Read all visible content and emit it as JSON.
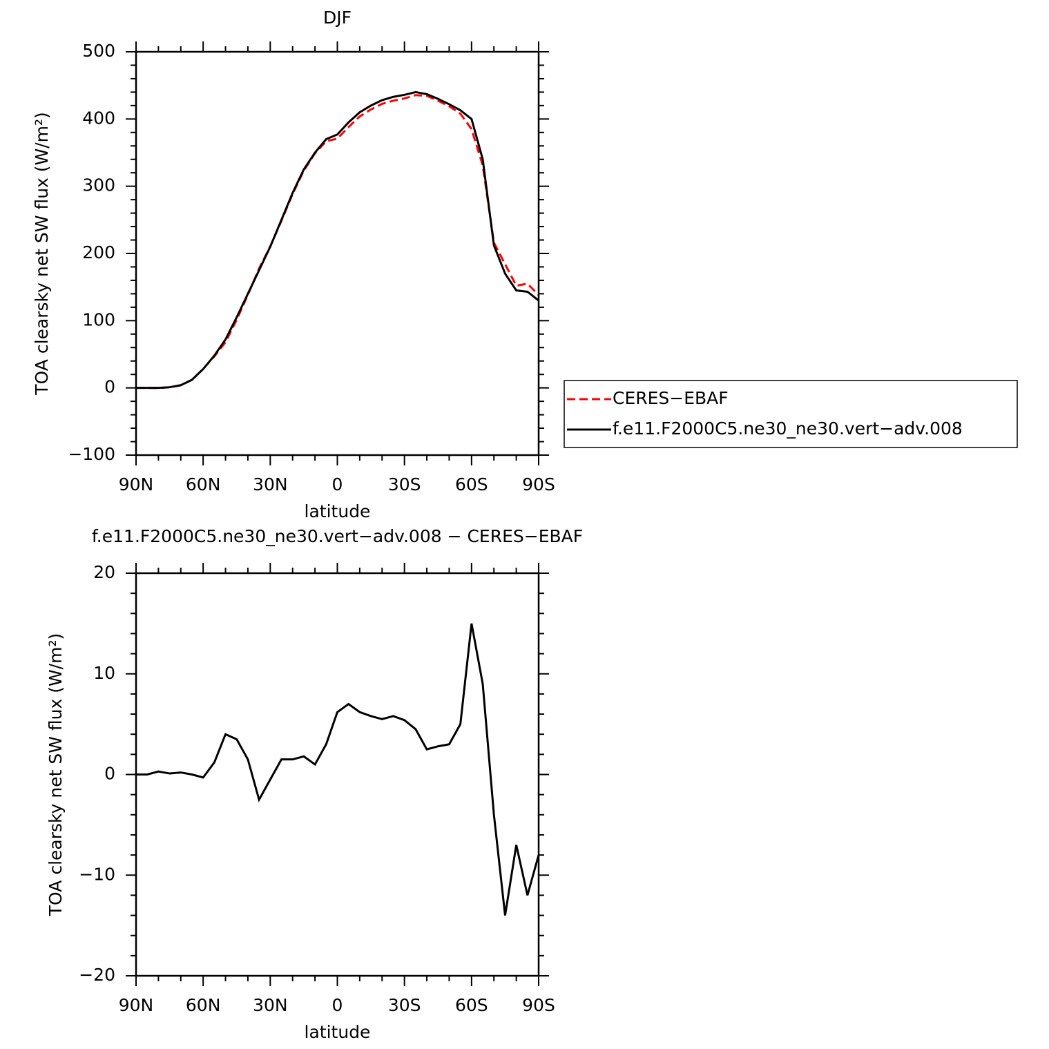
{
  "chart_data": [
    {
      "type": "line",
      "title": "DJF",
      "xlabel": "latitude",
      "ylabel": "TOA clearsky net SW flux (W/m²)",
      "x": [
        90,
        85,
        80,
        75,
        70,
        65,
        60,
        55,
        50,
        45,
        40,
        35,
        30,
        25,
        20,
        15,
        10,
        5,
        0,
        -5,
        -10,
        -15,
        -20,
        -25,
        -30,
        -35,
        -40,
        -45,
        -50,
        -55,
        -60,
        -65,
        -70,
        -75,
        -80,
        -85,
        -90
      ],
      "series": [
        {
          "name": "CERES−EBAF",
          "color": "#ff0000",
          "dash": true,
          "values": [
            0,
            0,
            -0.3,
            0.9,
            3.8,
            12,
            28.3,
            46.8,
            68,
            101.5,
            138.5,
            177.5,
            210.5,
            248.5,
            288.5,
            323.2,
            349,
            367,
            370.8,
            388,
            403.8,
            414.2,
            422.5,
            427.2,
            430.6,
            435.5,
            434.5,
            427.2,
            419,
            408,
            385,
            331,
            216,
            184,
            152,
            155,
            138
          ]
        },
        {
          "name": "f.e11.F2000C5.ne30_ne30.vert−adv.008",
          "color": "#000000",
          "dash": false,
          "values": [
            0,
            0,
            0,
            1,
            4,
            12,
            28,
            48,
            72,
            105,
            140,
            175,
            210,
            250,
            290,
            325,
            350,
            370,
            377,
            395,
            410,
            420,
            428,
            433,
            436,
            440,
            437,
            430,
            422,
            413,
            400,
            340,
            212,
            170,
            145,
            143,
            130
          ]
        }
      ],
      "xlim": [
        90,
        -90
      ],
      "ylim": [
        -100,
        500
      ],
      "xticks": [
        {
          "value": 90,
          "label": "90N"
        },
        {
          "value": 60,
          "label": "60N"
        },
        {
          "value": 30,
          "label": "30N"
        },
        0,
        {
          "value": -30,
          "label": "30S"
        },
        {
          "value": -60,
          "label": "60S"
        },
        {
          "value": -90,
          "label": "90S"
        }
      ],
      "yticks": [
        {
          "value": -100,
          "label": "−100"
        },
        0,
        100,
        200,
        300,
        400,
        500
      ],
      "xminorticks": [
        80,
        70,
        50,
        40,
        20,
        10,
        -10,
        -20,
        -40,
        -50,
        -70,
        -80
      ],
      "yminorticks": [
        -80,
        -60,
        -40,
        -20,
        20,
        40,
        60,
        80,
        120,
        140,
        160,
        180,
        220,
        240,
        260,
        280,
        320,
        340,
        360,
        380,
        420,
        440,
        460,
        480
      ],
      "legend": "right"
    },
    {
      "type": "line",
      "title": "f.e11.F2000C5.ne30_ne30.vert−adv.008 − CERES−EBAF",
      "xlabel": "latitude",
      "ylabel": "TOA clearsky net SW flux (W/m²)",
      "x": [
        90,
        85,
        80,
        75,
        70,
        65,
        60,
        55,
        50,
        45,
        40,
        35,
        30,
        25,
        20,
        15,
        10,
        5,
        0,
        -5,
        -10,
        -15,
        -20,
        -25,
        -30,
        -35,
        -40,
        -45,
        -50,
        -55,
        -60,
        -65,
        -70,
        -75,
        -80,
        -85,
        -90
      ],
      "series": [
        {
          "color": "#000000",
          "dash": false,
          "values": [
            0,
            0,
            0.3,
            0.1,
            0.2,
            0,
            -0.3,
            1.2,
            4,
            3.5,
            1.5,
            -2.5,
            -0.5,
            1.5,
            1.5,
            1.8,
            1,
            3,
            6.2,
            7,
            6.2,
            5.8,
            5.5,
            5.8,
            5.4,
            4.5,
            2.5,
            2.8,
            3,
            5,
            15,
            9,
            -4,
            -14,
            -7,
            -12,
            -8
          ]
        }
      ],
      "xlim": [
        90,
        -90
      ],
      "ylim": [
        -20,
        20
      ],
      "xticks": [
        {
          "value": 90,
          "label": "90N"
        },
        {
          "value": 60,
          "label": "60N"
        },
        {
          "value": 30,
          "label": "30N"
        },
        0,
        {
          "value": -30,
          "label": "30S"
        },
        {
          "value": -60,
          "label": "60S"
        },
        {
          "value": -90,
          "label": "90S"
        }
      ],
      "yticks": [
        {
          "value": -20,
          "label": "−20"
        },
        {
          "value": -10,
          "label": "−10"
        },
        0,
        10,
        20
      ],
      "xminorticks": [
        80,
        70,
        50,
        40,
        20,
        10,
        -10,
        -20,
        -40,
        -50,
        -70,
        -80
      ],
      "yminorticks": [
        -18,
        -16,
        -14,
        -12,
        -8,
        -6,
        -4,
        -2,
        2,
        4,
        6,
        8,
        12,
        14,
        16,
        18
      ]
    }
  ]
}
